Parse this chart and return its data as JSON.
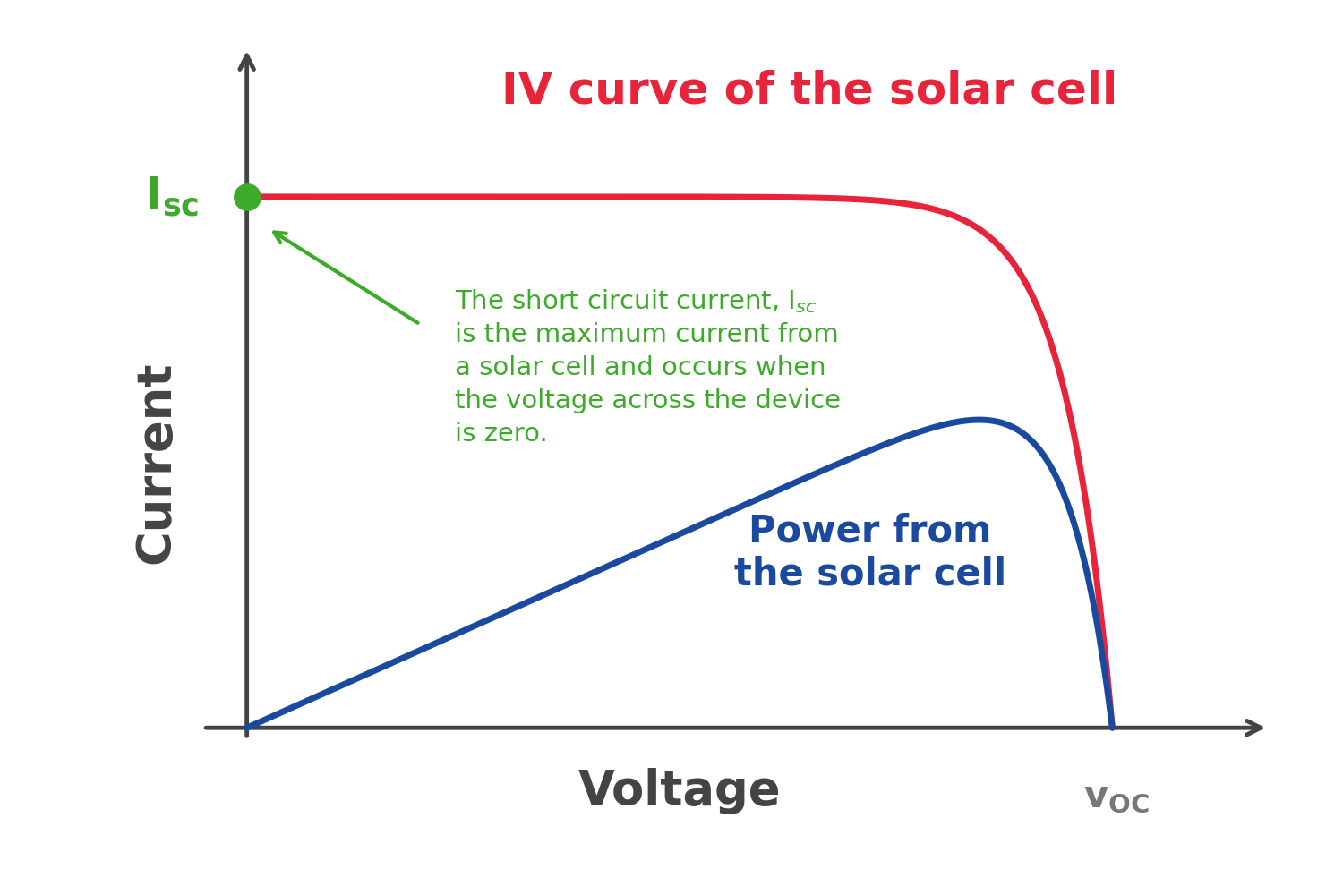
{
  "background_color": "#ffffff",
  "iv_color": "#e8233a",
  "power_color": "#1a4a9f",
  "green_color": "#3daa2a",
  "gray_color": "#444444",
  "title_text": "IV curve of the solar cell",
  "title_color": "#e8233a",
  "title_fontsize": 36,
  "power_label": "Power from\nthe solar cell",
  "power_label_color": "#1a4a9f",
  "power_label_fontsize": 30,
  "annotation_color": "#3daa2a",
  "annotation_fontsize": 21,
  "xlabel": "Voltage",
  "ylabel": "Current",
  "xlabel_fontsize": 38,
  "ylabel_fontsize": 38,
  "xlabel_color": "#444444",
  "ylabel_color": "#444444",
  "axis_label_color": "#3daa2a",
  "voc_label_color": "#777777",
  "isc_fontsize": 36,
  "voc_fontsize": 30,
  "arrow_color": "#3daa2a",
  "dot_color": "#3daa2a",
  "dot_size": 180,
  "line_width": 5.0,
  "axis_lw": 3.5,
  "arrow_mutation_scale": 28
}
